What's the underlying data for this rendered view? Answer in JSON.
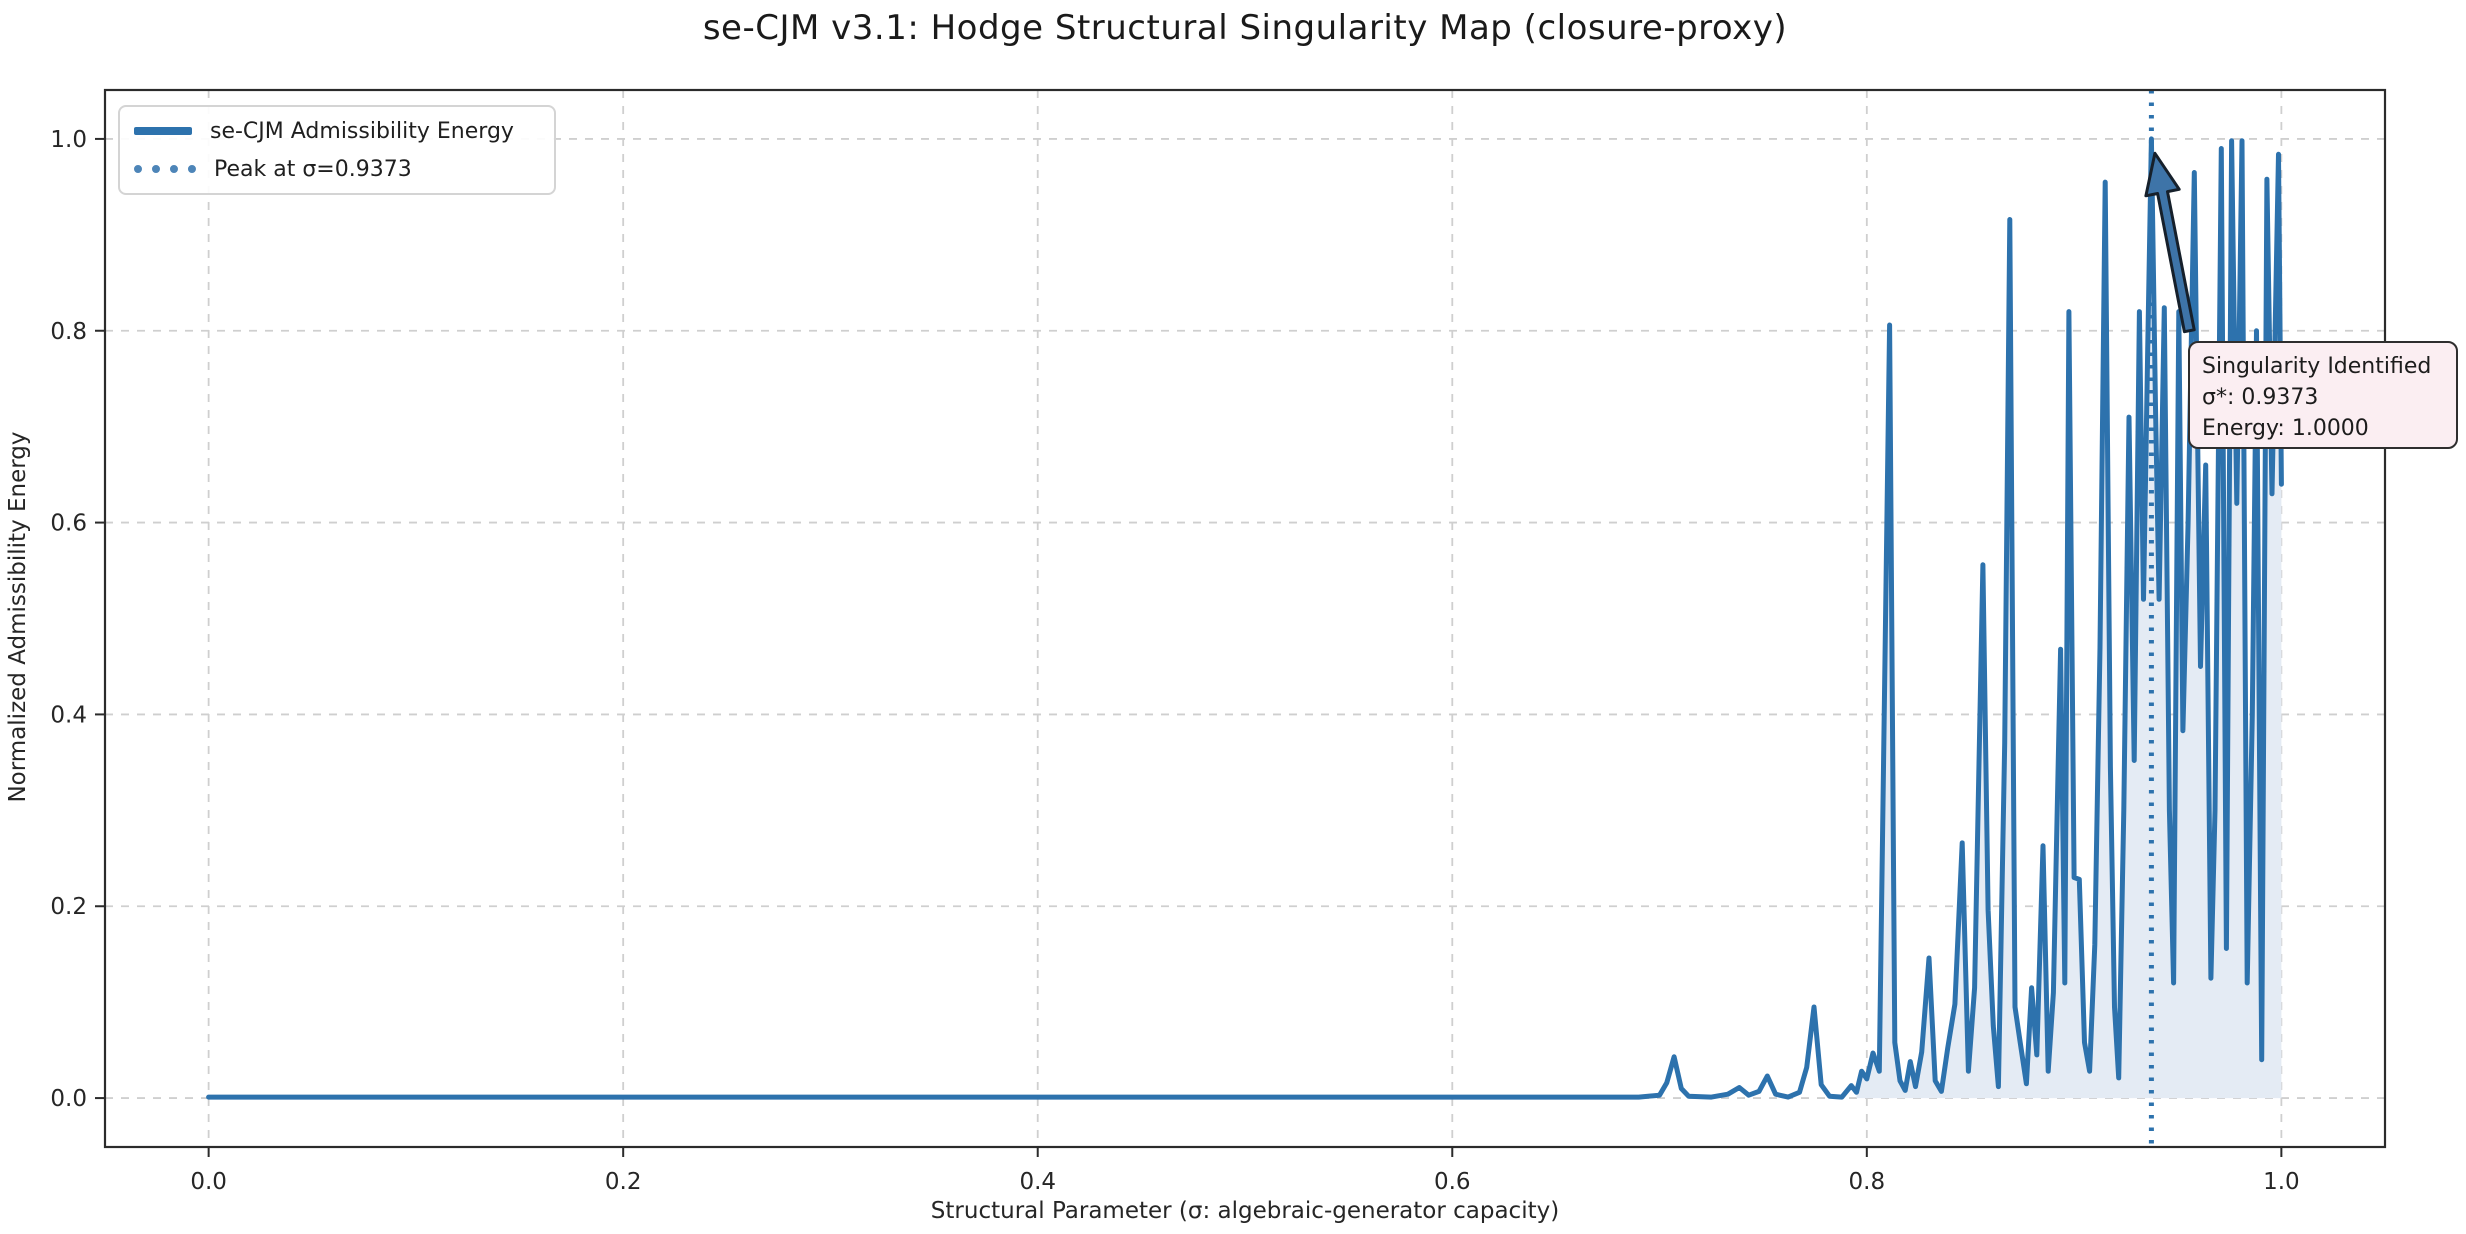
{
  "title": "se-CJM v3.1: Hodge Structural Singularity Map (closure-proxy)",
  "axes": {
    "xlabel": "Structural Parameter (σ: algebraic-generator capacity)",
    "ylabel": "Normalized Admissibility Energy"
  },
  "legend": {
    "items": [
      {
        "label": "se-CJM Admissibility Energy",
        "style": "solid"
      },
      {
        "label": "Peak at σ=0.9373",
        "style": "dotted"
      }
    ]
  },
  "annotation": {
    "lines": [
      "Singularity Identified",
      "σ*: 0.9373",
      "Energy: 1.0000"
    ],
    "arrow": {
      "from": [
        0.9556,
        0.8
      ],
      "to": [
        0.939,
        0.985
      ]
    }
  },
  "colors": {
    "line": "#2d72ad",
    "fill": "#e4ebf4",
    "grid": "#cfcfcf",
    "spine": "#2b2b2b",
    "tick_text": "#262626",
    "annotation_bg": "#fbeef2",
    "annotation_border": "#2e2e2e",
    "arrow_fill": "#3e74a8",
    "arrow_edge": "#16202b"
  },
  "chart_data": {
    "type": "line",
    "title": "se-CJM v3.1: Hodge Structural Singularity Map (closure-proxy)",
    "xlabel": "Structural Parameter (σ: algebraic-generator capacity)",
    "ylabel": "Normalized Admissibility Energy",
    "xlim": [
      -0.05,
      1.05
    ],
    "ylim": [
      -0.051,
      1.051
    ],
    "xticks": [
      0.0,
      0.2,
      0.4,
      0.6,
      0.8,
      1.0
    ],
    "yticks": [
      0.0,
      0.2,
      0.4,
      0.6,
      0.8,
      1.0
    ],
    "grid": true,
    "legend_position": "upper left",
    "peak": {
      "sigma": 0.9373,
      "energy": 1.0
    },
    "fill_from_sigma": 0.795,
    "series": [
      {
        "name": "se-CJM Admissibility Energy",
        "points": [
          [
            0.0,
            0.001
          ],
          [
            0.05,
            0.001
          ],
          [
            0.1,
            0.001
          ],
          [
            0.15,
            0.001
          ],
          [
            0.2,
            0.001
          ],
          [
            0.25,
            0.001
          ],
          [
            0.3,
            0.001
          ],
          [
            0.35,
            0.001
          ],
          [
            0.4,
            0.001
          ],
          [
            0.45,
            0.001
          ],
          [
            0.5,
            0.001
          ],
          [
            0.55,
            0.001
          ],
          [
            0.6,
            0.001
          ],
          [
            0.65,
            0.001
          ],
          [
            0.69,
            0.001
          ],
          [
            0.7,
            0.003
          ],
          [
            0.7035,
            0.016
          ],
          [
            0.707,
            0.043
          ],
          [
            0.7105,
            0.01
          ],
          [
            0.714,
            0.002
          ],
          [
            0.725,
            0.001
          ],
          [
            0.733,
            0.004
          ],
          [
            0.7385,
            0.011
          ],
          [
            0.743,
            0.003
          ],
          [
            0.748,
            0.007
          ],
          [
            0.752,
            0.023
          ],
          [
            0.756,
            0.004
          ],
          [
            0.762,
            0.001
          ],
          [
            0.7675,
            0.006
          ],
          [
            0.771,
            0.032
          ],
          [
            0.7745,
            0.095
          ],
          [
            0.778,
            0.014
          ],
          [
            0.782,
            0.002
          ],
          [
            0.788,
            0.001
          ],
          [
            0.7925,
            0.013
          ],
          [
            0.795,
            0.006
          ],
          [
            0.7975,
            0.028
          ],
          [
            0.8,
            0.02
          ],
          [
            0.803,
            0.047
          ],
          [
            0.806,
            0.028
          ],
          [
            0.811,
            0.806
          ],
          [
            0.8135,
            0.058
          ],
          [
            0.816,
            0.018
          ],
          [
            0.8185,
            0.008
          ],
          [
            0.821,
            0.038
          ],
          [
            0.8235,
            0.012
          ],
          [
            0.8265,
            0.048
          ],
          [
            0.83,
            0.146
          ],
          [
            0.833,
            0.018
          ],
          [
            0.836,
            0.007
          ],
          [
            0.839,
            0.052
          ],
          [
            0.8425,
            0.098
          ],
          [
            0.846,
            0.266
          ],
          [
            0.849,
            0.028
          ],
          [
            0.852,
            0.115
          ],
          [
            0.856,
            0.556
          ],
          [
            0.8585,
            0.196
          ],
          [
            0.861,
            0.075
          ],
          [
            0.8635,
            0.012
          ],
          [
            0.8665,
            0.37
          ],
          [
            0.869,
            0.916
          ],
          [
            0.8715,
            0.095
          ],
          [
            0.874,
            0.058
          ],
          [
            0.877,
            0.015
          ],
          [
            0.8795,
            0.115
          ],
          [
            0.882,
            0.045
          ],
          [
            0.885,
            0.263
          ],
          [
            0.8875,
            0.028
          ],
          [
            0.89,
            0.11
          ],
          [
            0.8935,
            0.468
          ],
          [
            0.8955,
            0.12
          ],
          [
            0.8975,
            0.82
          ],
          [
            0.9,
            0.23
          ],
          [
            0.9025,
            0.228
          ],
          [
            0.905,
            0.058
          ],
          [
            0.9075,
            0.028
          ],
          [
            0.91,
            0.16
          ],
          [
            0.9125,
            0.47
          ],
          [
            0.915,
            0.955
          ],
          [
            0.9175,
            0.345
          ],
          [
            0.9195,
            0.095
          ],
          [
            0.9215,
            0.021
          ],
          [
            0.924,
            0.3
          ],
          [
            0.9265,
            0.71
          ],
          [
            0.929,
            0.352
          ],
          [
            0.9315,
            0.82
          ],
          [
            0.9335,
            0.52
          ],
          [
            0.9355,
            0.78
          ],
          [
            0.9373,
            1.0
          ],
          [
            0.9393,
            0.72
          ],
          [
            0.941,
            0.52
          ],
          [
            0.9435,
            0.824
          ],
          [
            0.946,
            0.3
          ],
          [
            0.948,
            0.12
          ],
          [
            0.9505,
            0.82
          ],
          [
            0.9525,
            0.383
          ],
          [
            0.955,
            0.6
          ],
          [
            0.958,
            0.965
          ],
          [
            0.961,
            0.45
          ],
          [
            0.9635,
            0.66
          ],
          [
            0.966,
            0.125
          ],
          [
            0.968,
            0.3
          ],
          [
            0.971,
            0.99
          ],
          [
            0.9735,
            0.156
          ],
          [
            0.976,
            0.998
          ],
          [
            0.9785,
            0.62
          ],
          [
            0.981,
            0.998
          ],
          [
            0.9835,
            0.12
          ],
          [
            0.986,
            0.4
          ],
          [
            0.988,
            0.8
          ],
          [
            0.9905,
            0.04
          ],
          [
            0.993,
            0.958
          ],
          [
            0.9955,
            0.63
          ],
          [
            0.9986,
            0.984
          ],
          [
            1.0,
            0.64
          ]
        ]
      }
    ],
    "tick_label_format": {
      "x": [
        "0.0",
        "0.2",
        "0.4",
        "0.6",
        "0.8",
        "1.0"
      ],
      "y": [
        "0.0",
        "0.2",
        "0.4",
        "0.6",
        "0.8",
        "1.0"
      ]
    }
  }
}
